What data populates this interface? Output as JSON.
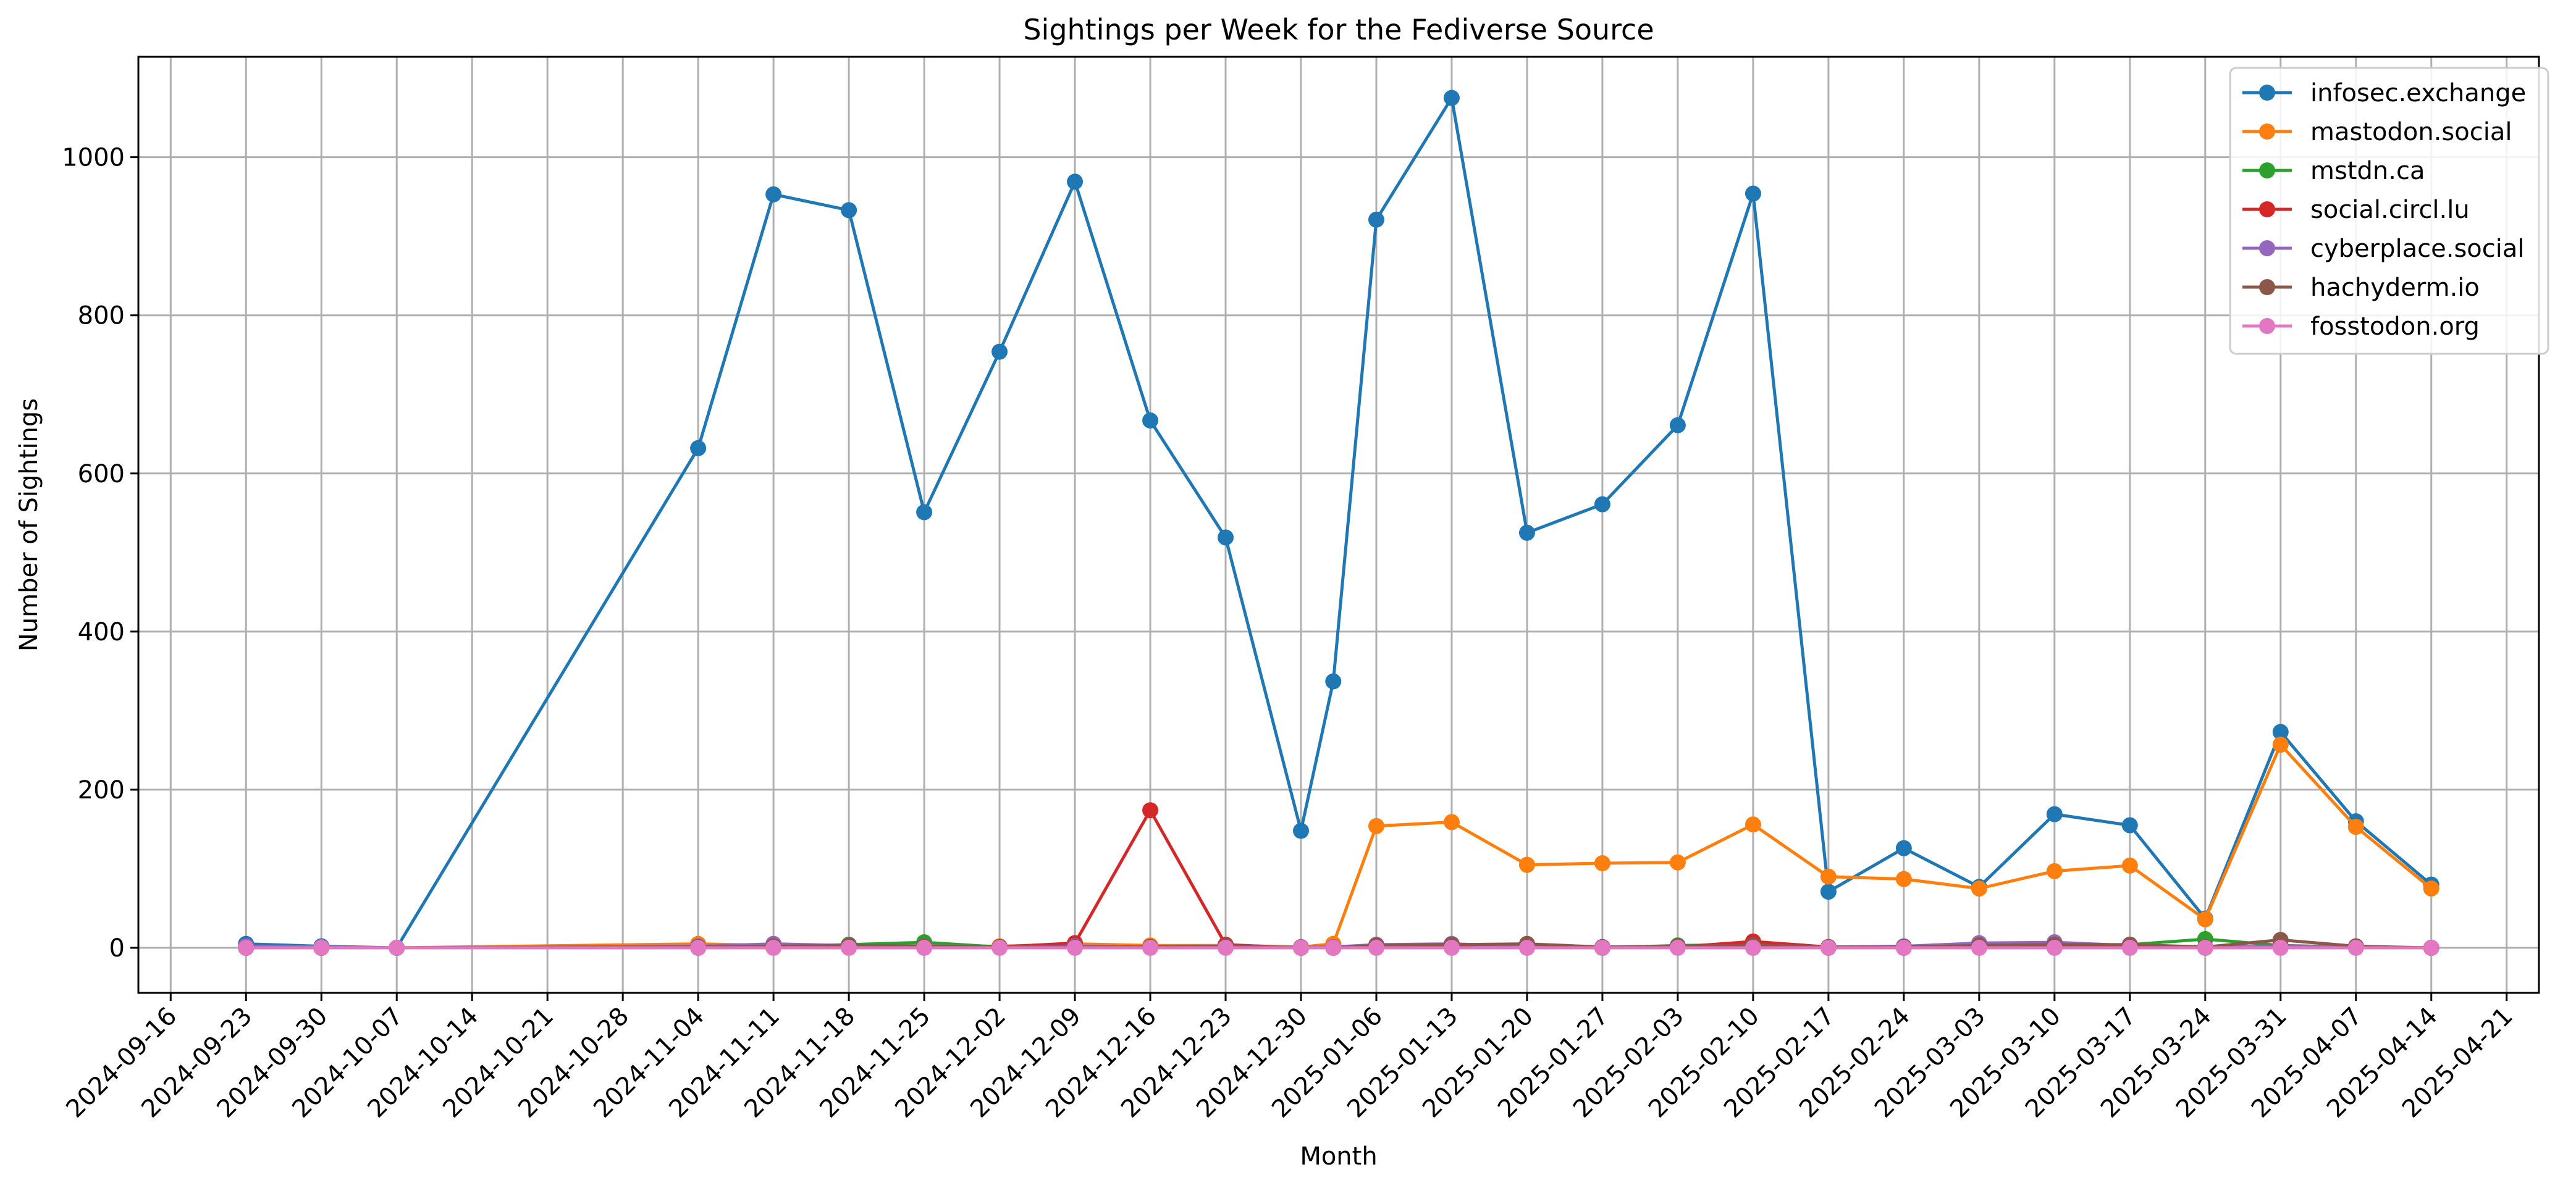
{
  "chart_data": {
    "type": "line",
    "title": "Sightings per Week for the Fediverse Source",
    "xlabel": "Month",
    "ylabel": "Number of Sightings",
    "x_ticks": [
      "2024-09-16",
      "2024-09-23",
      "2024-09-30",
      "2024-10-07",
      "2024-10-14",
      "2024-10-21",
      "2024-10-28",
      "2024-11-04",
      "2024-11-11",
      "2024-11-18",
      "2024-11-25",
      "2024-12-02",
      "2024-12-09",
      "2024-12-16",
      "2024-12-23",
      "2024-12-30",
      "2025-01-06",
      "2025-01-13",
      "2025-01-20",
      "2025-01-27",
      "2025-02-03",
      "2025-02-10",
      "2025-02-17",
      "2025-02-24",
      "2025-03-03",
      "2025-03-10",
      "2025-03-17",
      "2025-03-24",
      "2025-03-31",
      "2025-04-07",
      "2025-04-14",
      "2025-04-21"
    ],
    "y_ticks": [
      0,
      200,
      400,
      600,
      800,
      1000
    ],
    "xlim": [
      "2024-09-13",
      "2025-04-24"
    ],
    "ylim": [
      -57,
      1127
    ],
    "grid": true,
    "legend_position": "top-right",
    "series": [
      {
        "name": "infosec.exchange",
        "color": "#1f77b4",
        "points": [
          [
            "2024-09-23",
            5
          ],
          [
            "2024-09-30",
            2
          ],
          [
            "2024-10-07",
            0
          ],
          [
            "2024-11-04",
            632
          ],
          [
            "2024-11-11",
            953
          ],
          [
            "2024-11-18",
            933
          ],
          [
            "2024-11-25",
            551
          ],
          [
            "2024-12-02",
            754
          ],
          [
            "2024-12-09",
            969
          ],
          [
            "2024-12-16",
            667
          ],
          [
            "2024-12-23",
            519
          ],
          [
            "2024-12-30",
            148
          ],
          [
            "2025-01-02",
            337
          ],
          [
            "2025-01-06",
            921
          ],
          [
            "2025-01-13",
            1075
          ],
          [
            "2025-01-20",
            525
          ],
          [
            "2025-01-27",
            561
          ],
          [
            "2025-02-03",
            661
          ],
          [
            "2025-02-10",
            954
          ],
          [
            "2025-02-17",
            71
          ],
          [
            "2025-02-24",
            126
          ],
          [
            "2025-03-03",
            77
          ],
          [
            "2025-03-10",
            169
          ],
          [
            "2025-03-17",
            155
          ],
          [
            "2025-03-24",
            37
          ],
          [
            "2025-03-31",
            273
          ],
          [
            "2025-04-07",
            160
          ],
          [
            "2025-04-14",
            80
          ]
        ]
      },
      {
        "name": "mastodon.social",
        "color": "#ff7f0e",
        "points": [
          [
            "2024-09-23",
            0
          ],
          [
            "2024-09-30",
            0
          ],
          [
            "2024-10-07",
            0
          ],
          [
            "2024-11-04",
            5
          ],
          [
            "2024-11-11",
            3
          ],
          [
            "2024-11-18",
            2
          ],
          [
            "2024-11-25",
            3
          ],
          [
            "2024-12-02",
            2
          ],
          [
            "2024-12-09",
            5
          ],
          [
            "2024-12-16",
            3
          ],
          [
            "2024-12-23",
            3
          ],
          [
            "2024-12-30",
            1
          ],
          [
            "2025-01-02",
            5
          ],
          [
            "2025-01-06",
            154
          ],
          [
            "2025-01-13",
            159
          ],
          [
            "2025-01-20",
            105
          ],
          [
            "2025-01-27",
            107
          ],
          [
            "2025-02-03",
            108
          ],
          [
            "2025-02-10",
            156
          ],
          [
            "2025-02-17",
            90
          ],
          [
            "2025-02-24",
            87
          ],
          [
            "2025-03-03",
            75
          ],
          [
            "2025-03-10",
            97
          ],
          [
            "2025-03-17",
            104
          ],
          [
            "2025-03-24",
            36
          ],
          [
            "2025-03-31",
            257
          ],
          [
            "2025-04-07",
            153
          ],
          [
            "2025-04-14",
            75
          ]
        ]
      },
      {
        "name": "mstdn.ca",
        "color": "#2ca02c",
        "points": [
          [
            "2024-09-23",
            0
          ],
          [
            "2024-09-30",
            0
          ],
          [
            "2024-10-07",
            0
          ],
          [
            "2024-11-04",
            1
          ],
          [
            "2024-11-11",
            2
          ],
          [
            "2024-11-18",
            4
          ],
          [
            "2024-11-25",
            7
          ],
          [
            "2024-12-02",
            1
          ],
          [
            "2024-12-09",
            1
          ],
          [
            "2024-12-16",
            1
          ],
          [
            "2024-12-23",
            1
          ],
          [
            "2024-12-30",
            0
          ],
          [
            "2025-01-02",
            0
          ],
          [
            "2025-01-06",
            3
          ],
          [
            "2025-01-13",
            2
          ],
          [
            "2025-01-20",
            1
          ],
          [
            "2025-01-27",
            0
          ],
          [
            "2025-02-03",
            3
          ],
          [
            "2025-02-10",
            4
          ],
          [
            "2025-02-17",
            0
          ],
          [
            "2025-02-24",
            1
          ],
          [
            "2025-03-03",
            2
          ],
          [
            "2025-03-10",
            3
          ],
          [
            "2025-03-17",
            4
          ],
          [
            "2025-03-24",
            11
          ],
          [
            "2025-03-31",
            3
          ],
          [
            "2025-04-07",
            1
          ],
          [
            "2025-04-14",
            0
          ]
        ]
      },
      {
        "name": "social.circl.lu",
        "color": "#d62728",
        "points": [
          [
            "2024-09-23",
            0
          ],
          [
            "2024-09-30",
            0
          ],
          [
            "2024-10-07",
            0
          ],
          [
            "2024-11-04",
            0
          ],
          [
            "2024-11-11",
            1
          ],
          [
            "2024-11-18",
            1
          ],
          [
            "2024-11-25",
            1
          ],
          [
            "2024-12-02",
            1
          ],
          [
            "2024-12-09",
            6
          ],
          [
            "2024-12-16",
            174
          ],
          [
            "2024-12-23",
            4
          ],
          [
            "2024-12-30",
            0
          ],
          [
            "2025-01-02",
            0
          ],
          [
            "2025-01-06",
            1
          ],
          [
            "2025-01-13",
            2
          ],
          [
            "2025-01-20",
            1
          ],
          [
            "2025-01-27",
            0
          ],
          [
            "2025-02-03",
            1
          ],
          [
            "2025-02-10",
            8
          ],
          [
            "2025-02-17",
            1
          ],
          [
            "2025-02-24",
            0
          ],
          [
            "2025-03-03",
            1
          ],
          [
            "2025-03-10",
            1
          ],
          [
            "2025-03-17",
            1
          ],
          [
            "2025-03-24",
            0
          ],
          [
            "2025-03-31",
            2
          ],
          [
            "2025-04-07",
            1
          ],
          [
            "2025-04-14",
            0
          ]
        ]
      },
      {
        "name": "cyberplace.social",
        "color": "#9467bd",
        "points": [
          [
            "2024-09-23",
            2
          ],
          [
            "2024-09-30",
            1
          ],
          [
            "2024-10-07",
            0
          ],
          [
            "2024-11-04",
            2
          ],
          [
            "2024-11-11",
            5
          ],
          [
            "2024-11-18",
            3
          ],
          [
            "2024-11-25",
            2
          ],
          [
            "2024-12-02",
            1
          ],
          [
            "2024-12-09",
            2
          ],
          [
            "2024-12-16",
            1
          ],
          [
            "2024-12-23",
            2
          ],
          [
            "2024-12-30",
            1
          ],
          [
            "2025-01-02",
            1
          ],
          [
            "2025-01-06",
            4
          ],
          [
            "2025-01-13",
            5
          ],
          [
            "2025-01-20",
            2
          ],
          [
            "2025-01-27",
            1
          ],
          [
            "2025-02-03",
            2
          ],
          [
            "2025-02-10",
            3
          ],
          [
            "2025-02-17",
            1
          ],
          [
            "2025-02-24",
            2
          ],
          [
            "2025-03-03",
            6
          ],
          [
            "2025-03-10",
            7
          ],
          [
            "2025-03-17",
            3
          ],
          [
            "2025-03-24",
            1
          ],
          [
            "2025-03-31",
            2
          ],
          [
            "2025-04-07",
            1
          ],
          [
            "2025-04-14",
            0
          ]
        ]
      },
      {
        "name": "hachyderm.io",
        "color": "#8c564b",
        "points": [
          [
            "2024-09-23",
            0
          ],
          [
            "2024-09-30",
            0
          ],
          [
            "2024-10-07",
            0
          ],
          [
            "2024-11-04",
            1
          ],
          [
            "2024-11-11",
            2
          ],
          [
            "2024-11-18",
            3
          ],
          [
            "2024-11-25",
            2
          ],
          [
            "2024-12-02",
            1
          ],
          [
            "2024-12-09",
            1
          ],
          [
            "2024-12-16",
            1
          ],
          [
            "2024-12-23",
            2
          ],
          [
            "2024-12-30",
            0
          ],
          [
            "2025-01-02",
            0
          ],
          [
            "2025-01-06",
            3
          ],
          [
            "2025-01-13",
            4
          ],
          [
            "2025-01-20",
            5
          ],
          [
            "2025-01-27",
            1
          ],
          [
            "2025-02-03",
            2
          ],
          [
            "2025-02-10",
            3
          ],
          [
            "2025-02-17",
            1
          ],
          [
            "2025-02-24",
            1
          ],
          [
            "2025-03-03",
            3
          ],
          [
            "2025-03-10",
            4
          ],
          [
            "2025-03-17",
            4
          ],
          [
            "2025-03-24",
            1
          ],
          [
            "2025-03-31",
            10
          ],
          [
            "2025-04-07",
            2
          ],
          [
            "2025-04-14",
            0
          ]
        ]
      },
      {
        "name": "fosstodon.org",
        "color": "#e377c2",
        "points": [
          [
            "2024-09-23",
            0
          ],
          [
            "2024-09-30",
            0
          ],
          [
            "2024-10-07",
            0
          ],
          [
            "2024-11-04",
            0
          ],
          [
            "2024-11-11",
            0
          ],
          [
            "2024-11-18",
            0
          ],
          [
            "2024-11-25",
            0
          ],
          [
            "2024-12-02",
            0
          ],
          [
            "2024-12-09",
            0
          ],
          [
            "2024-12-16",
            0
          ],
          [
            "2024-12-23",
            0
          ],
          [
            "2024-12-30",
            0
          ],
          [
            "2025-01-02",
            0
          ],
          [
            "2025-01-06",
            0
          ],
          [
            "2025-01-13",
            0
          ],
          [
            "2025-01-20",
            0
          ],
          [
            "2025-01-27",
            0
          ],
          [
            "2025-02-03",
            0
          ],
          [
            "2025-02-10",
            0
          ],
          [
            "2025-02-17",
            0
          ],
          [
            "2025-02-24",
            0
          ],
          [
            "2025-03-03",
            0
          ],
          [
            "2025-03-10",
            0
          ],
          [
            "2025-03-17",
            0
          ],
          [
            "2025-03-24",
            0
          ],
          [
            "2025-03-31",
            0
          ],
          [
            "2025-04-07",
            0
          ],
          [
            "2025-04-14",
            0
          ]
        ]
      }
    ]
  }
}
